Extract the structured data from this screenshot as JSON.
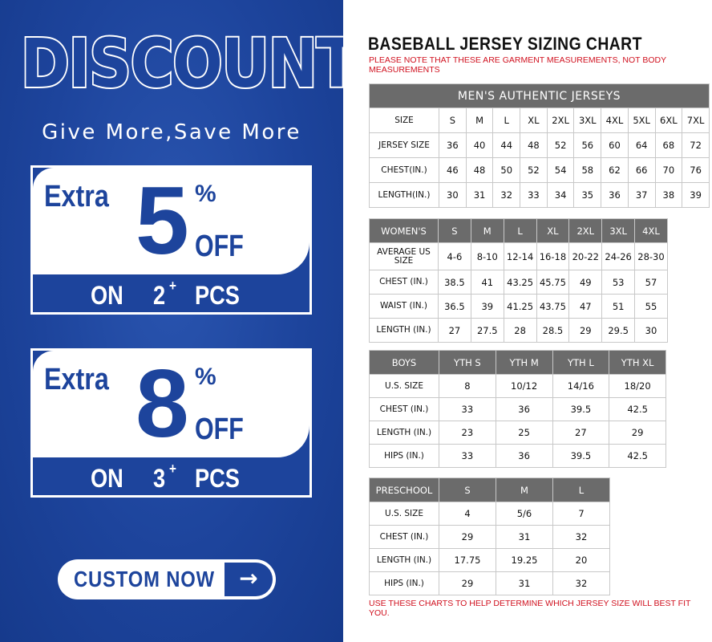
{
  "promo": {
    "headline": "DISCOUNT",
    "tagline": "Give More,Save More",
    "offers": [
      {
        "extra": "Extra",
        "value": "5",
        "percent": "%",
        "off": "OFF",
        "on": "ON",
        "qty": "2",
        "plus": "+",
        "pcs": "PCS"
      },
      {
        "extra": "Extra",
        "value": "8",
        "percent": "%",
        "off": "OFF",
        "on": "ON",
        "qty": "3",
        "plus": "+",
        "pcs": "PCS"
      }
    ],
    "button": {
      "label": "CUSTOM NOW",
      "icon": "arrow-right-icon",
      "glyph": "→"
    },
    "colors": {
      "brand_blue": "#1d449c",
      "note_red": "#d0101e",
      "header_gray": "#6b6b6b"
    }
  },
  "chart": {
    "title": "BASEBALL JERSEY SIZING CHART",
    "note": "PLEASE NOTE THAT THESE ARE GARMENT MEASUREMENTS, NOT BODY MEASUREMENTS",
    "footer": "USE THESE CHARTS TO HELP DETERMINE WHICH JERSEY SIZE WILL BEST FIT YOU.",
    "tables": [
      {
        "caption": "MEN'S AUTHENTIC JERSEYS",
        "header": [
          "SIZE",
          "S",
          "M",
          "L",
          "XL",
          "2XL",
          "3XL",
          "4XL",
          "5XL",
          "6XL",
          "7XL"
        ],
        "rows": [
          [
            "JERSEY SIZE",
            "36",
            "40",
            "44",
            "48",
            "52",
            "56",
            "60",
            "64",
            "68",
            "72"
          ],
          [
            "CHEST(IN.)",
            "46",
            "48",
            "50",
            "52",
            "54",
            "58",
            "62",
            "66",
            "70",
            "76"
          ],
          [
            "LENGTH(IN.)",
            "30",
            "31",
            "32",
            "33",
            "34",
            "35",
            "36",
            "37",
            "38",
            "39"
          ]
        ]
      },
      {
        "header": [
          "WOMEN'S",
          "S",
          "M",
          "L",
          "XL",
          "2XL",
          "3XL",
          "4XL"
        ],
        "rows": [
          [
            "AVERAGE US SIZE",
            "4-6",
            "8-10",
            "12-14",
            "16-18",
            "20-22",
            "24-26",
            "28-30"
          ],
          [
            "CHEST (IN.)",
            "38.5",
            "41",
            "43.25",
            "45.75",
            "49",
            "53",
            "57"
          ],
          [
            "WAIST (IN.)",
            "36.5",
            "39",
            "41.25",
            "43.75",
            "47",
            "51",
            "55"
          ],
          [
            "LENGTH (IN.)",
            "27",
            "27.5",
            "28",
            "28.5",
            "29",
            "29.5",
            "30"
          ]
        ]
      },
      {
        "header": [
          "BOYS",
          "YTH S",
          "YTH M",
          "YTH L",
          "YTH XL"
        ],
        "rows": [
          [
            "U.S. SIZE",
            "8",
            "10/12",
            "14/16",
            "18/20"
          ],
          [
            "CHEST (IN.)",
            "33",
            "36",
            "39.5",
            "42.5"
          ],
          [
            "LENGTH (IN.)",
            "23",
            "25",
            "27",
            "29"
          ],
          [
            "HIPS (IN.)",
            "33",
            "36",
            "39.5",
            "42.5"
          ]
        ]
      },
      {
        "header": [
          "PRESCHOOL",
          "S",
          "M",
          "L"
        ],
        "rows": [
          [
            "U.S. SIZE",
            "4",
            "5/6",
            "7"
          ],
          [
            "CHEST (IN.)",
            "29",
            "31",
            "32"
          ],
          [
            "LENGTH (IN.)",
            "17.75",
            "19.25",
            "20"
          ],
          [
            "HIPS (IN.)",
            "29",
            "31",
            "32"
          ]
        ]
      }
    ]
  }
}
